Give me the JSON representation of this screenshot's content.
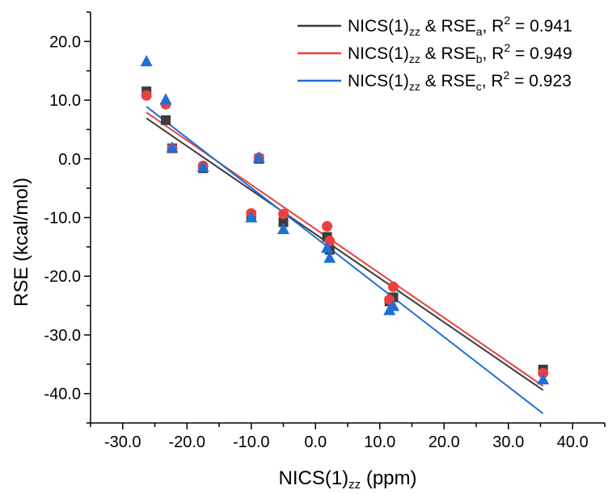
{
  "chart_data": {
    "type": "scatter",
    "xlabel": {
      "main": "NICS(1)",
      "sub": "zz",
      "suffix": " (ppm)"
    },
    "ylabel": "RSE (kcal/mol)",
    "xlim": [
      -35,
      45
    ],
    "ylim": [
      -45,
      25
    ],
    "x_ticks": [
      -30,
      -20,
      -10,
      0,
      10,
      20,
      30,
      40
    ],
    "x_tick_labels": [
      "-30.0",
      "-20.0",
      "-10.0",
      "0.0",
      "10.0",
      "20.0",
      "30.0",
      "40.0"
    ],
    "y_ticks": [
      20,
      10,
      0,
      -10,
      -20,
      -30,
      -40
    ],
    "y_tick_labels": [
      "20.0",
      "10.0",
      "0.0",
      "-10.0",
      "-20.0",
      "-30.0",
      "-40.0"
    ],
    "legend_position": "top-right",
    "series": [
      {
        "key": "a",
        "legend": {
          "prefix": "NICS(1)",
          "sub1": "zz",
          "mid": " & RSE",
          "sub2": "a",
          "r2pre": ", R",
          "sup": "2",
          "r2post": " = 0.941"
        },
        "marker": "square",
        "color": "#3c3c3c",
        "x": [
          -26.3,
          -23.3,
          -22.3,
          -17.5,
          -10.0,
          -8.8,
          -5.0,
          1.8,
          2.2,
          11.5,
          12.1,
          35.4
        ],
        "y": [
          11.5,
          6.6,
          1.8,
          -1.6,
          -9.6,
          0.0,
          -10.8,
          -13.3,
          -15.5,
          -24.3,
          -23.6,
          -35.9
        ],
        "fit": {
          "x": [
            -26.3,
            35.4
          ],
          "y": [
            6.9,
            -39.4
          ]
        }
      },
      {
        "key": "b",
        "legend": {
          "prefix": "NICS(1)",
          "sub1": "zz",
          "mid": " & RSE",
          "sub2": "b",
          "r2pre": ", R",
          "sup": "2",
          "r2post": " = 0.949"
        },
        "marker": "circle",
        "color": "#e8413f",
        "x": [
          -26.3,
          -23.3,
          -22.3,
          -17.5,
          -10.0,
          -8.8,
          -5.0,
          1.8,
          2.2,
          11.5,
          12.1,
          35.4
        ],
        "y": [
          10.8,
          9.3,
          1.8,
          -1.2,
          -9.3,
          0.2,
          -9.4,
          -11.5,
          -14.0,
          -24.0,
          -21.8,
          -36.5
        ],
        "fit": {
          "x": [
            -26.3,
            35.4
          ],
          "y": [
            7.9,
            -38.7
          ]
        }
      },
      {
        "key": "c",
        "legend": {
          "prefix": "NICS(1)",
          "sub1": "zz",
          "mid": " & RSE",
          "sub2": "c",
          "r2pre": ", R",
          "sup": "2",
          "r2post": " = 0.923"
        },
        "marker": "triangle",
        "color": "#1f6fd6",
        "x": [
          -26.3,
          -23.3,
          -22.3,
          -17.5,
          -10.0,
          -8.8,
          -5.0,
          1.8,
          2.2,
          11.5,
          12.1,
          35.4
        ],
        "y": [
          16.6,
          10.1,
          1.9,
          -1.4,
          -10.0,
          0.2,
          -12.0,
          -15.2,
          -16.9,
          -25.8,
          -25.1,
          -37.6
        ],
        "fit": {
          "x": [
            -26.3,
            35.4
          ],
          "y": [
            8.9,
            -43.4
          ]
        }
      }
    ]
  }
}
